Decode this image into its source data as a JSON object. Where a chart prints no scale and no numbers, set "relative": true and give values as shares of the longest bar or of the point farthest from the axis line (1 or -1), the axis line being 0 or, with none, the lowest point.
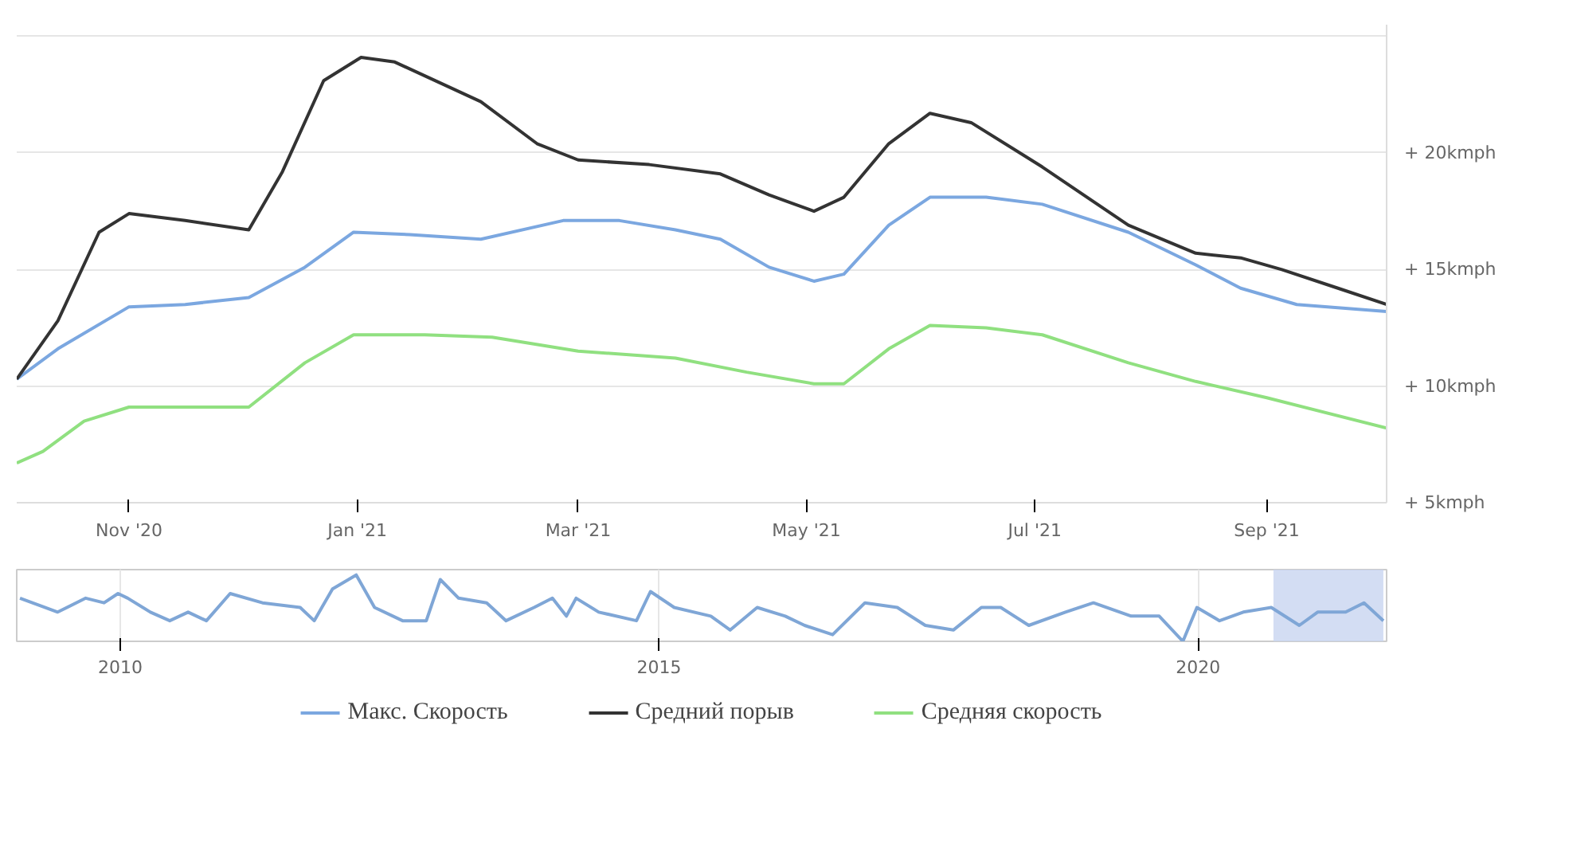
{
  "chart_data": [
    {
      "type": "line",
      "grid": "y",
      "legend": "bottom",
      "ylim": [
        5,
        25.5
      ],
      "xlim": [
        "2020-10-02",
        "2021-10-03"
      ],
      "yticks": [
        {
          "value": 5,
          "label": "+ 5kmph"
        },
        {
          "value": 10,
          "label": "+ 10kmph"
        },
        {
          "value": 15,
          "label": "+ 15kmph"
        },
        {
          "value": 20,
          "label": "+ 20kmph"
        },
        {
          "value": 25,
          "label": null
        }
      ],
      "xticks": [
        {
          "value": "2020-11-01",
          "label": "Nov '20"
        },
        {
          "value": "2021-01-01",
          "label": "Jan '21"
        },
        {
          "value": "2021-03-01",
          "label": "Mar '21"
        },
        {
          "value": "2021-05-01",
          "label": "May '21"
        },
        {
          "value": "2021-07-01",
          "label": "Jul '21"
        },
        {
          "value": "2021-09-01",
          "label": "Sep '21"
        }
      ],
      "series": [
        {
          "name": "Макс. Скорость",
          "color": "#7ba7e0",
          "x": [
            "2020-10-02",
            "2020-10-13",
            "2020-11-01",
            "2020-11-16",
            "2020-12-03",
            "2020-12-18",
            "2020-12-31",
            "2021-01-15",
            "2021-02-03",
            "2021-02-25",
            "2021-03-12",
            "2021-03-27",
            "2021-04-08",
            "2021-04-21",
            "2021-05-03",
            "2021-05-11",
            "2021-05-23",
            "2021-06-03",
            "2021-06-18",
            "2021-07-03",
            "2021-07-26",
            "2021-08-13",
            "2021-08-25",
            "2021-09-09",
            "2021-10-03"
          ],
          "values": [
            10.3,
            11.6,
            13.4,
            13.5,
            13.8,
            15.1,
            16.6,
            16.5,
            16.3,
            17.1,
            17.1,
            16.7,
            16.3,
            15.1,
            14.5,
            14.8,
            16.9,
            18.1,
            18.1,
            17.8,
            16.6,
            15.2,
            14.2,
            13.5,
            13.2
          ]
        },
        {
          "name": "Средний порыв",
          "color": "#333333",
          "x": [
            "2020-10-02",
            "2020-10-13",
            "2020-10-24",
            "2020-11-01",
            "2020-11-16",
            "2020-12-03",
            "2020-12-12",
            "2020-12-23",
            "2021-01-02",
            "2021-01-11",
            "2021-02-03",
            "2021-02-18",
            "2021-03-01",
            "2021-03-20",
            "2021-04-08",
            "2021-04-21",
            "2021-05-03",
            "2021-05-11",
            "2021-05-23",
            "2021-06-03",
            "2021-06-14",
            "2021-07-03",
            "2021-07-26",
            "2021-08-13",
            "2021-08-25",
            "2021-09-05",
            "2021-09-20",
            "2021-10-03"
          ],
          "values": [
            10.3,
            12.8,
            16.6,
            17.4,
            17.1,
            16.7,
            19.2,
            23.1,
            24.1,
            23.9,
            22.2,
            20.4,
            19.7,
            19.5,
            19.1,
            18.2,
            17.5,
            18.1,
            20.4,
            21.7,
            21.3,
            19.4,
            16.9,
            15.7,
            15.5,
            15.0,
            14.2,
            13.5
          ]
        },
        {
          "name": "Средняя скорость",
          "color": "#90e080",
          "x": [
            "2020-10-02",
            "2020-10-09",
            "2020-10-20",
            "2020-11-01",
            "2020-11-16",
            "2020-12-03",
            "2020-12-18",
            "2020-12-31",
            "2021-01-19",
            "2021-02-06",
            "2021-03-01",
            "2021-03-27",
            "2021-04-15",
            "2021-05-03",
            "2021-05-11",
            "2021-05-23",
            "2021-06-03",
            "2021-06-18",
            "2021-07-03",
            "2021-07-26",
            "2021-08-13",
            "2021-09-01",
            "2021-10-03"
          ],
          "values": [
            6.7,
            7.2,
            8.5,
            9.1,
            9.1,
            9.1,
            11.0,
            12.2,
            12.2,
            12.1,
            11.5,
            11.2,
            10.6,
            10.1,
            10.1,
            11.6,
            12.6,
            12.5,
            12.2,
            11.0,
            10.2,
            9.5,
            8.2
          ]
        }
      ]
    },
    {
      "type": "line",
      "relative": true,
      "grid": "x",
      "xlim": [
        2009.04,
        2021.75
      ],
      "xticks": [
        2010,
        2015,
        2020
      ],
      "bands": [
        {
          "axis": "x",
          "from": 2020.7,
          "to": 2021.72,
          "color": "#c8d4f0"
        }
      ],
      "series": [
        {
          "color": "#7fa6d6",
          "x": [
            2009.07,
            2009.42,
            2009.68,
            2009.85,
            2009.98,
            2010.07,
            2010.28,
            2010.46,
            2010.63,
            2010.8,
            2011.02,
            2011.32,
            2011.67,
            2011.8,
            2011.97,
            2012.19,
            2012.36,
            2012.62,
            2012.84,
            2012.97,
            2013.14,
            2013.4,
            2013.58,
            2013.84,
            2014.01,
            2014.14,
            2014.23,
            2014.44,
            2014.79,
            2014.92,
            2015.14,
            2015.48,
            2015.66,
            2015.91,
            2016.17,
            2016.35,
            2016.61,
            2016.91,
            2017.21,
            2017.47,
            2017.73,
            2017.99,
            2018.17,
            2018.43,
            2018.77,
            2019.03,
            2019.38,
            2019.64,
            2019.86,
            2019.99,
            2020.2,
            2020.42,
            2020.68,
            2020.94,
            2021.11,
            2021.37,
            2021.54,
            2021.72
          ],
          "values": [
            0.65,
            0.44,
            0.65,
            0.58,
            0.72,
            0.65,
            0.44,
            0.31,
            0.44,
            0.31,
            0.72,
            0.58,
            0.51,
            0.31,
            0.79,
            1,
            0.51,
            0.31,
            0.31,
            0.93,
            0.65,
            0.58,
            0.31,
            0.51,
            0.65,
            0.38,
            0.65,
            0.44,
            0.31,
            0.75,
            0.51,
            0.38,
            0.17,
            0.51,
            0.38,
            0.24,
            0.1,
            0.58,
            0.51,
            0.24,
            0.17,
            0.51,
            0.51,
            0.24,
            0.44,
            0.58,
            0.38,
            0.38,
            0,
            0.51,
            0.31,
            0.44,
            0.51,
            0.24,
            0.44,
            0.44,
            0.58,
            0.31
          ]
        }
      ]
    }
  ]
}
